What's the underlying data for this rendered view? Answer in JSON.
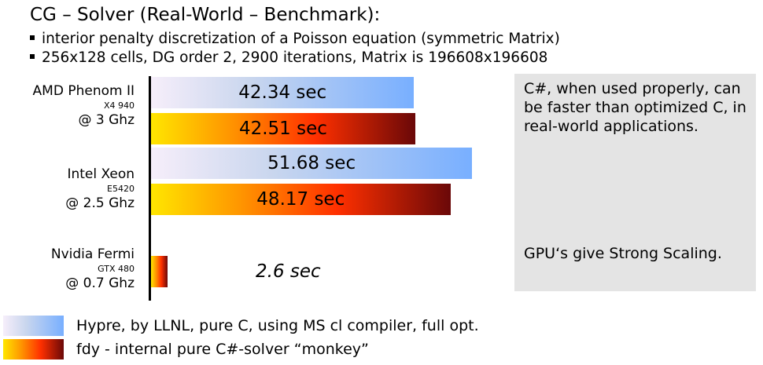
{
  "title": "CG – Solver (Real-World – Benchmark):",
  "bullets": [
    "interior penalty discretization of a Poisson equation (symmetric Matrix)",
    "256x128 cells, DG order 2, 2900 iterations, Matrix is 196608x196608"
  ],
  "chart_data": {
    "type": "bar",
    "orientation": "horizontal",
    "unit": "sec",
    "categories": [
      {
        "name": "AMD Phenom II",
        "model": "X4 940",
        "clock": "@ 3 Ghz"
      },
      {
        "name": "Intel Xeon",
        "model": "E5420",
        "clock": "@ 2.5 Ghz"
      },
      {
        "name": "Nvidia Fermi",
        "model": "GTX 480",
        "clock": "@ 0.7 Ghz"
      }
    ],
    "series": [
      {
        "name": "Hypre, by LLNL, pure C, using MS cl compiler, full opt.",
        "values": [
          42.34,
          51.68,
          null
        ],
        "labels": [
          "42.34 sec",
          "51.68 sec",
          ""
        ]
      },
      {
        "name": "fdy - internal pure C#-solver “monkey”",
        "values": [
          42.51,
          48.17,
          2.6
        ],
        "labels": [
          "42.51 sec",
          "48.17 sec",
          "2.6 sec"
        ]
      }
    ],
    "xlim": [
      0,
      55
    ],
    "grid": false,
    "legend": "bottom-left",
    "colors": {
      "hypre_gradient": [
        "#f6eefa",
        "#c9d6ee",
        "#78afff"
      ],
      "fdy_gradient": [
        "#ffe600",
        "#ff9500",
        "#ff3000",
        "#6a0808"
      ],
      "note_background": "#e4e4e4"
    }
  },
  "notes": [
    "C#, when used properly, can be faster than optimized C, in real-world applications.",
    "GPU‘s give Strong Scaling."
  ]
}
